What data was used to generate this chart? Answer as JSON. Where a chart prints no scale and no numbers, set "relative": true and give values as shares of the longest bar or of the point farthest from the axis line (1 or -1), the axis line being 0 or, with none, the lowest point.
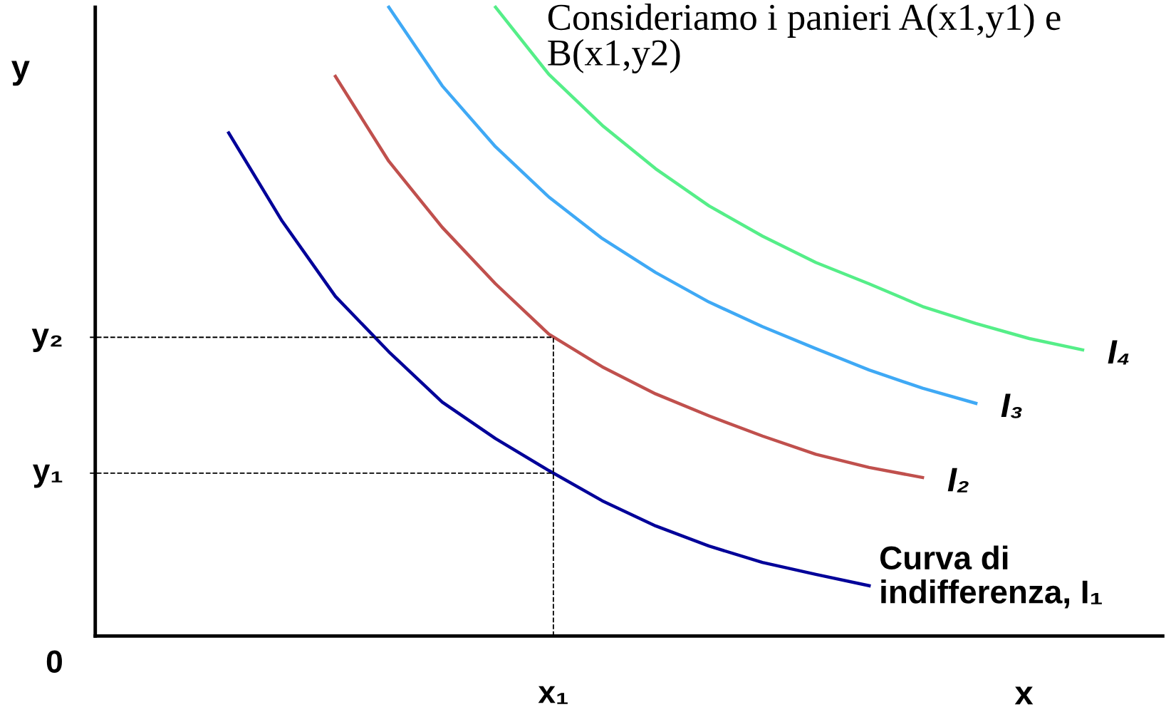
{
  "chart_data": {
    "type": "line",
    "relative": true,
    "title": "Consideriamo i panieri A(x1,y1) e B(x1,y2)",
    "xlabel": "x",
    "ylabel": "y",
    "annotations": [
      "0",
      "x₁"
    ],
    "legend": false,
    "marker": "none",
    "line_style": "solid",
    "categories": [
      null,
      null,
      null,
      null,
      null,
      null,
      null,
      null,
      null,
      null,
      null,
      null,
      null,
      null,
      null,
      null,
      null,
      null,
      null,
      null
    ],
    "series": [
      {
        "name": "Curva di\nindifferenza, I₁",
        "color": "#000099",
        "values": [
          null,
          null,
          0.8,
          0.66,
          0.54,
          0.452,
          0.372,
          0.314,
          0.263,
          0.215,
          0.175,
          0.143,
          0.117,
          0.098,
          0.08,
          null,
          null,
          null,
          null,
          null
        ]
      },
      {
        "name": "I₂",
        "color": "#c0504d",
        "values": [
          null,
          null,
          null,
          null,
          0.89,
          0.755,
          0.65,
          0.56,
          0.48,
          0.428,
          0.385,
          0.35,
          0.318,
          0.289,
          0.268,
          0.252,
          null,
          null,
          null,
          null
        ]
      },
      {
        "name": "I₃",
        "color": "#3fa9f5",
        "values": [
          null,
          null,
          null,
          null,
          null,
          1.0,
          0.875,
          0.778,
          0.698,
          0.632,
          0.578,
          0.531,
          0.492,
          0.457,
          0.423,
          0.394,
          0.37,
          null,
          null,
          null
        ]
      },
      {
        "name": "I₄",
        "color": "#55ee88",
        "values": [
          null,
          null,
          null,
          null,
          null,
          null,
          null,
          1.0,
          0.893,
          0.812,
          0.743,
          0.684,
          0.636,
          0.594,
          0.56,
          0.524,
          0.497,
          0.473,
          0.455,
          null
        ]
      }
    ],
    "ref_lines": [
      {
        "axis": "y",
        "value": 0.475,
        "label": "y₂",
        "color": "#000000",
        "line_style": "dashed"
      },
      {
        "axis": "y",
        "value": 0.259,
        "label": "y₁",
        "color": "#000000",
        "line_style": "dashed"
      }
    ]
  }
}
